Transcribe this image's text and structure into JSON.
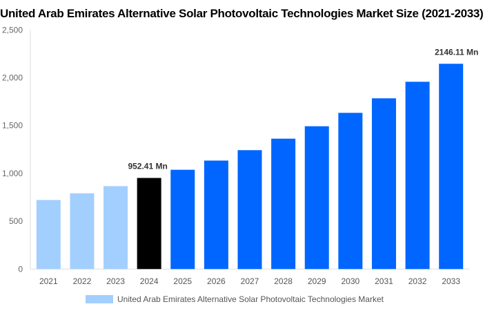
{
  "chart_data": {
    "type": "bar",
    "title": "United Arab Emirates Alternative Solar Photovoltaic Technologies Market Size (2021-2033)",
    "categories": [
      "2021",
      "2022",
      "2023",
      "2024",
      "2025",
      "2026",
      "2027",
      "2028",
      "2029",
      "2030",
      "2031",
      "2032",
      "2033"
    ],
    "series": [
      {
        "name": "United Arab Emirates Alternative Solar Photovoltaic Technologies Market",
        "values": [
          722,
          792,
          867,
          952.41,
          1038,
          1134,
          1243,
          1363,
          1493,
          1633,
          1785,
          1958,
          2146.11
        ]
      }
    ],
    "bar_colors": [
      "#a3cffe",
      "#a3cffe",
      "#a3cffe",
      "#000000",
      "#0066ff",
      "#0066ff",
      "#0066ff",
      "#0066ff",
      "#0066ff",
      "#0066ff",
      "#0066ff",
      "#0066ff",
      "#0066ff"
    ],
    "annotations": [
      {
        "category": "2024",
        "text": "952.41 Mn"
      },
      {
        "category": "2033",
        "text": "2146.11 Mn"
      }
    ],
    "ylim": [
      0,
      2500
    ],
    "yticks": [
      0,
      500,
      1000,
      1500,
      2000,
      2500
    ],
    "ytick_labels": [
      "0",
      "500",
      "1,000",
      "1,500",
      "2,000",
      "2,500"
    ],
    "xlabel": "",
    "ylabel": "",
    "grid": false,
    "legend": "bottom"
  }
}
